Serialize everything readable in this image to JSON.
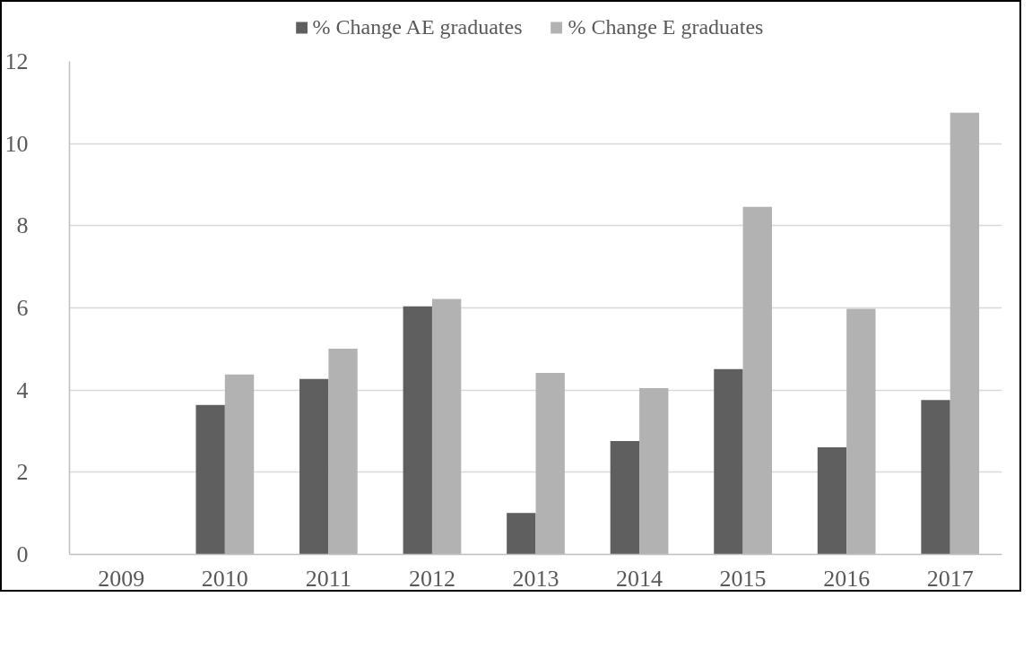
{
  "chart_data": {
    "type": "bar",
    "categories": [
      "2009",
      "2010",
      "2011",
      "2012",
      "2013",
      "2014",
      "2015",
      "2016",
      "2017"
    ],
    "series": [
      {
        "name": "% Change AE graduates",
        "color": "#5f5f5f",
        "values": [
          null,
          3.64,
          4.27,
          6.04,
          1.01,
          2.76,
          4.51,
          2.61,
          3.76
        ]
      },
      {
        "name": "% Change E graduates",
        "color": "#b2b2b2",
        "values": [
          null,
          4.38,
          5.01,
          6.22,
          4.42,
          4.05,
          8.46,
          5.98,
          10.75
        ]
      }
    ],
    "ylim": [
      0,
      12
    ],
    "yticks": [
      0,
      2,
      4,
      6,
      8,
      10,
      12
    ],
    "grid": "y",
    "legend": "top"
  }
}
